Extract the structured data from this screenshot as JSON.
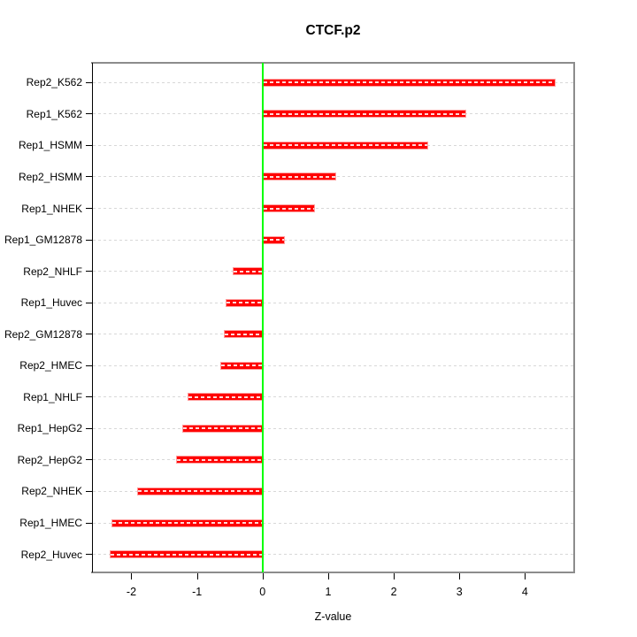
{
  "figure": {
    "title": "CTCF.p2",
    "xlabel": "Z-value"
  },
  "chart_data": {
    "type": "bar",
    "orientation": "horizontal",
    "title": "CTCF.p2",
    "xlabel": "Z-value",
    "ylabel": "",
    "categories": [
      "Rep2_K562",
      "Rep1_K562",
      "Rep1_HSMM",
      "Rep2_HSMM",
      "Rep1_NHEK",
      "Rep1_GM12878",
      "Rep2_NHLF",
      "Rep1_Huvec",
      "Rep2_GM12878",
      "Rep2_HMEC",
      "Rep1_NHLF",
      "Rep1_HepG2",
      "Rep2_HepG2",
      "Rep2_NHEK",
      "Rep1_HMEC",
      "Rep2_Huvec"
    ],
    "values": [
      4.47,
      3.11,
      2.52,
      1.12,
      0.8,
      0.34,
      -0.45,
      -0.56,
      -0.59,
      -0.64,
      -1.14,
      -1.22,
      -1.32,
      -1.91,
      -2.31,
      -2.33
    ],
    "xticks": [
      -2,
      -1,
      0,
      1,
      2,
      3,
      4
    ],
    "xlim": [
      -2.6,
      4.75
    ],
    "zero_line_x": 0,
    "grid": "dotted horizontal line per category, full plot width",
    "legend": "none",
    "colors": {
      "bar": "#ff0000",
      "bar_edge": "#ff9d9d",
      "bar_center_dash": "#ffffff",
      "zero_line": "#00ff00",
      "grid": "#d8d8d8",
      "box": "#8c8c8c",
      "axis": "#000000",
      "background": "#ffffff"
    }
  }
}
